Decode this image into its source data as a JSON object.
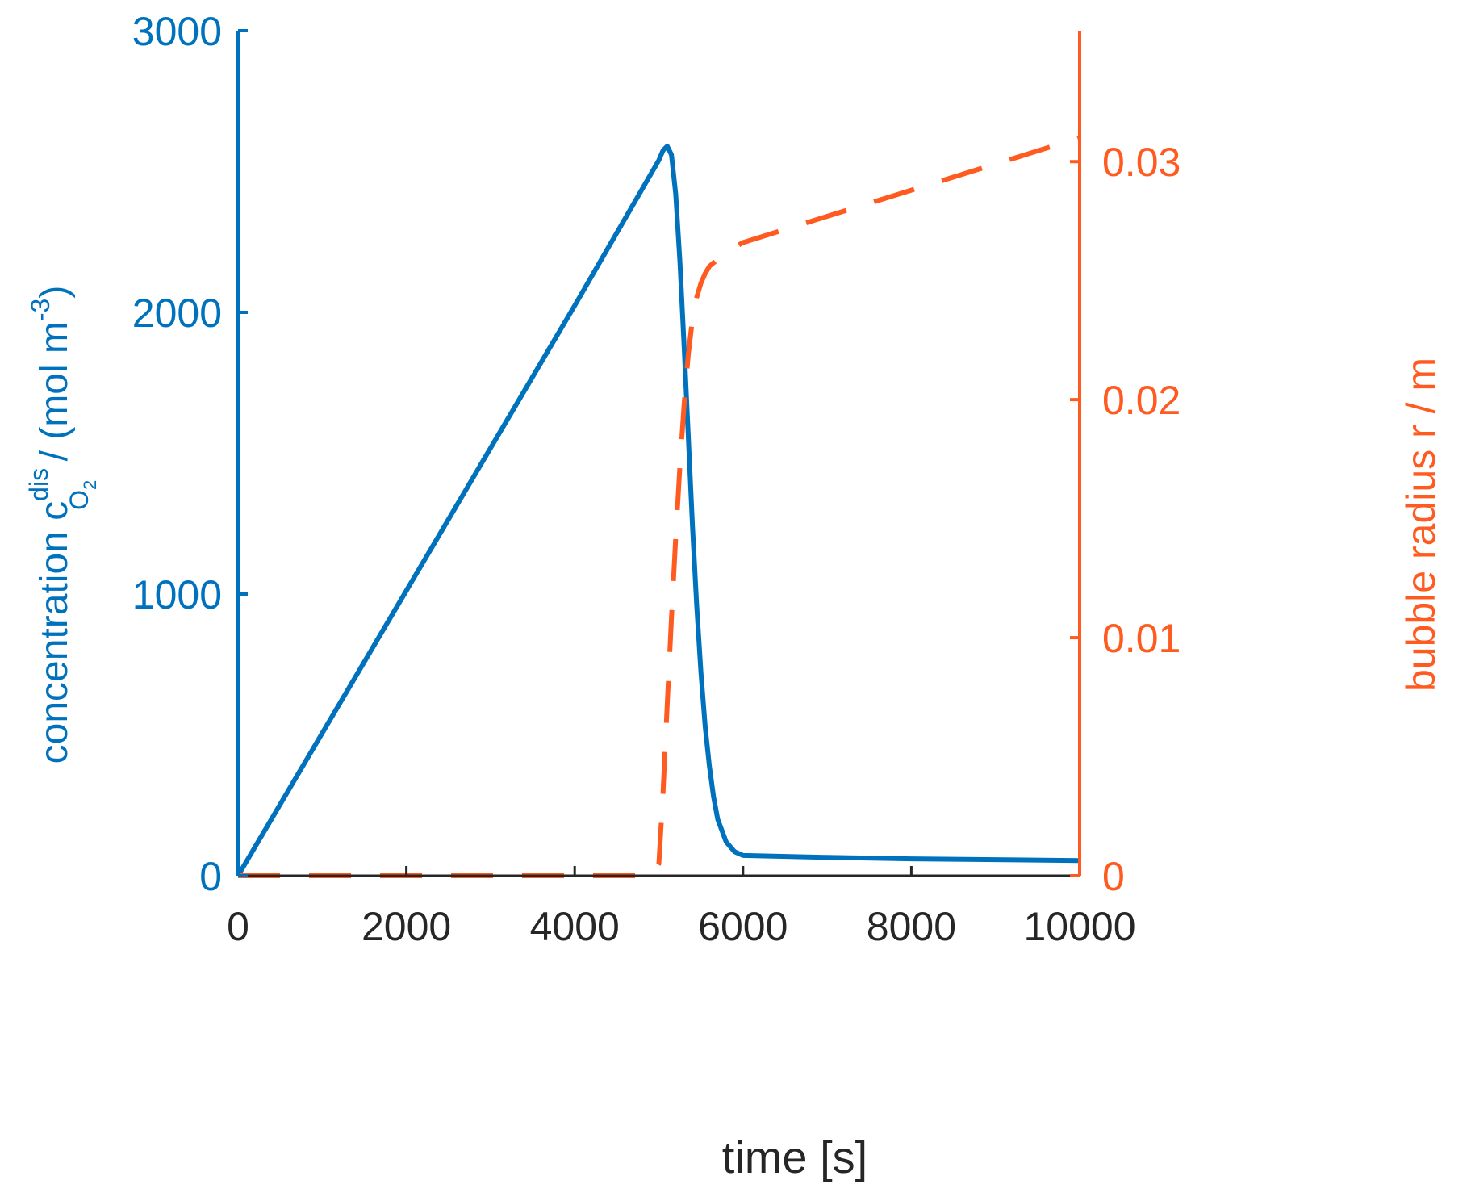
{
  "colors": {
    "left_axis": "#0072BD",
    "right_axis": "#FF5A1F",
    "x_axis": "#262626"
  },
  "chart_data": {
    "type": "line",
    "title": "",
    "xlabel": "time  [s]",
    "ylabel_left": {
      "prefix": "concentration c",
      "superscript": "dis",
      "subscript": "O",
      "subscript2": "2",
      "suffix": " / (mol m",
      "unit_superscript": "-3",
      "close": ")"
    },
    "ylabel_right": "bubble radius r / m",
    "xlim": [
      0,
      10000
    ],
    "ylim_left": [
      0,
      3000
    ],
    "ylim_right": [
      0,
      0.0355
    ],
    "x_ticks": [
      0,
      2000,
      4000,
      6000,
      8000,
      10000
    ],
    "x_tick_labels": [
      "0",
      "2000",
      "4000",
      "6000",
      "8000",
      "10000"
    ],
    "y_left_ticks": [
      0,
      1000,
      2000,
      3000
    ],
    "y_left_tick_labels": [
      "0",
      "1000",
      "2000",
      "3000"
    ],
    "y_right_ticks": [
      0,
      0.01,
      0.02,
      0.03
    ],
    "y_right_tick_labels": [
      "0",
      "0.01",
      "0.02",
      "0.03"
    ],
    "grid": false,
    "legend": "none",
    "series": [
      {
        "axis": "left",
        "style": "solid",
        "color": "#0072BD",
        "x": [
          0,
          1000,
          2000,
          3000,
          4000,
          5000,
          5050,
          5100,
          5150,
          5200,
          5250,
          5300,
          5350,
          5400,
          5450,
          5500,
          5550,
          5600,
          5650,
          5700,
          5800,
          5900,
          6000,
          7000,
          8000,
          9000,
          10000
        ],
        "y": [
          0,
          506,
          1012,
          1518,
          2024,
          2540,
          2575,
          2590,
          2560,
          2420,
          2180,
          1880,
          1560,
          1240,
          960,
          720,
          530,
          390,
          280,
          200,
          120,
          85,
          72,
          65,
          60,
          57,
          54
        ]
      },
      {
        "axis": "right",
        "style": "dashed",
        "color": "#FF5A1F",
        "x": [
          0,
          4900,
          5000,
          5050,
          5100,
          5150,
          5200,
          5250,
          5300,
          5350,
          5400,
          5450,
          5500,
          5550,
          5600,
          5700,
          5800,
          6000,
          7000,
          8000,
          9000,
          10000
        ],
        "y": [
          0,
          0,
          0.0005,
          0.0035,
          0.0072,
          0.0108,
          0.0142,
          0.0172,
          0.0198,
          0.0219,
          0.0234,
          0.0243,
          0.0249,
          0.0253,
          0.0256,
          0.0259,
          0.0262,
          0.0266,
          0.0277,
          0.0288,
          0.0299,
          0.031
        ]
      }
    ]
  }
}
